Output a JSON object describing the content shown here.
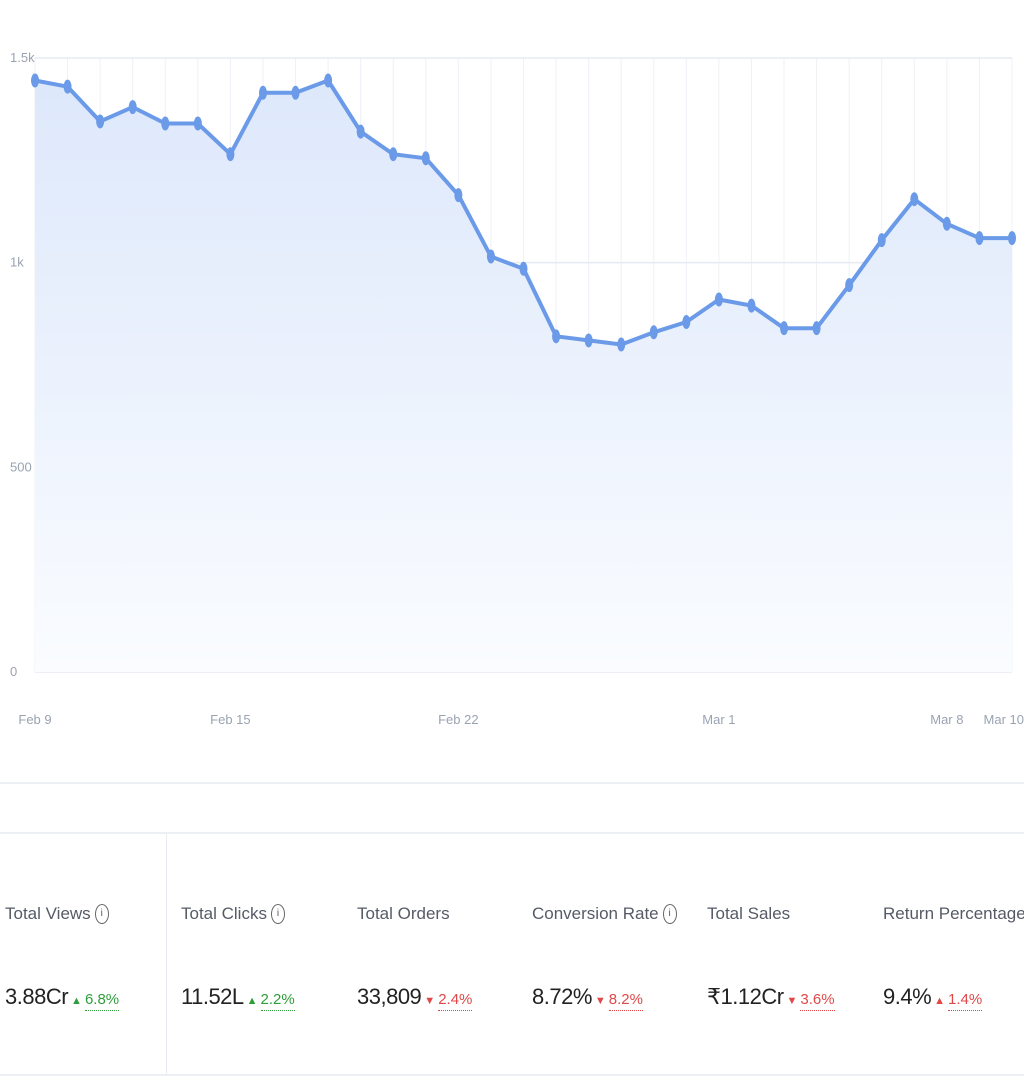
{
  "chart_data": {
    "type": "area",
    "x": [
      "Feb 9",
      "Feb 10",
      "Feb 11",
      "Feb 12",
      "Feb 13",
      "Feb 14",
      "Feb 15",
      "Feb 16",
      "Feb 17",
      "Feb 18",
      "Feb 19",
      "Feb 20",
      "Feb 21",
      "Feb 22",
      "Feb 23",
      "Feb 24",
      "Feb 25",
      "Feb 26",
      "Feb 27",
      "Feb 28",
      "Feb 29",
      "Mar 1",
      "Mar 2",
      "Mar 3",
      "Mar 4",
      "Mar 5",
      "Mar 6",
      "Mar 7",
      "Mar 8",
      "Mar 9",
      "Mar 10"
    ],
    "series": [
      {
        "values": [
          1445,
          1430,
          1345,
          1380,
          1340,
          1340,
          1265,
          1415,
          1415,
          1445,
          1320,
          1265,
          1255,
          1165,
          1015,
          985,
          820,
          810,
          800,
          830,
          855,
          910,
          895,
          840,
          840,
          945,
          1055,
          1155,
          1095,
          1060,
          1060
        ]
      }
    ],
    "ylim": [
      0,
      1500
    ],
    "yticks": [
      "0",
      "500",
      "1k",
      "1.5k"
    ],
    "xticks": [
      "Feb 9",
      "Feb 15",
      "Feb 22",
      "Mar 1",
      "Mar 8",
      "Mar 10"
    ],
    "grid": true,
    "line_color": "#6a9ae8",
    "area_color_top": "#dde8fb",
    "area_color_bottom": "#fafcff"
  },
  "kpis": [
    {
      "label": "Total Views",
      "info": true,
      "value": "3.88Cr",
      "direction": "up",
      "change": "6.8%"
    },
    {
      "label": "Total Clicks",
      "info": true,
      "value": "11.52L",
      "direction": "up",
      "change": "2.2%"
    },
    {
      "label": "Total Orders",
      "info": false,
      "value": "33,809",
      "direction": "down",
      "change": "2.4%"
    },
    {
      "label": "Conversion Rate",
      "info": true,
      "value": "8.72%",
      "direction": "down",
      "change": "8.2%"
    },
    {
      "label": "Total Sales",
      "info": false,
      "value": "₹1.12Cr",
      "direction": "down",
      "change": "3.6%"
    },
    {
      "label": "Return Percentage",
      "info": false,
      "value": "9.4%",
      "direction": "up",
      "change": "1.4%"
    }
  ],
  "icons": {
    "info": "info-icon",
    "up": "triangle-up-icon",
    "down": "triangle-down-icon"
  },
  "glyphs": {
    "info": "i",
    "up": "▲",
    "down": "▼"
  }
}
